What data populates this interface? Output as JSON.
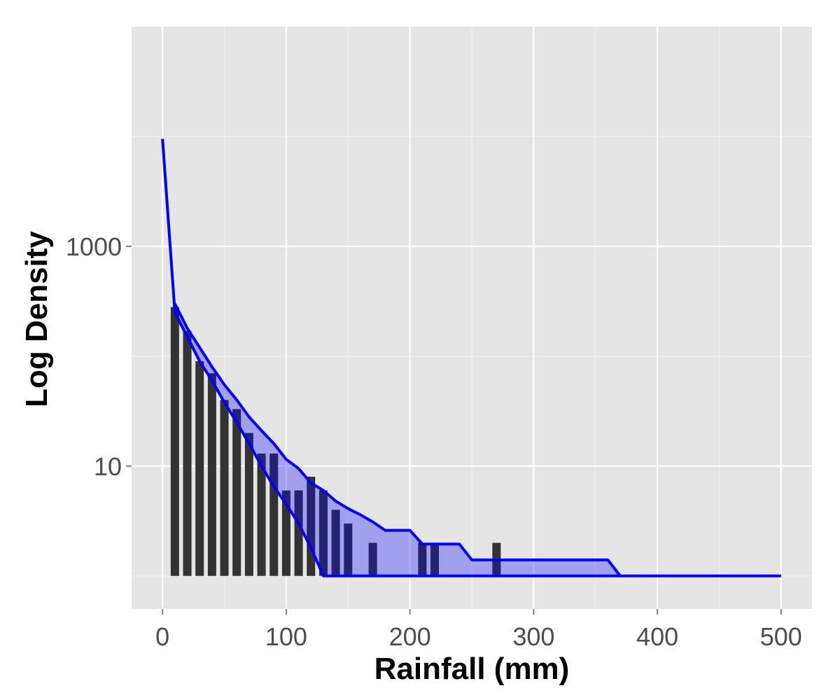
{
  "chart_data": {
    "type": "bar",
    "title": "",
    "xlabel": "Rainfall (mm)",
    "ylabel": "Log Density",
    "y_scale": "log10",
    "xlim": [
      -25,
      525
    ],
    "ylim": [
      0.5,
      100000
    ],
    "grid": true,
    "legend": "none",
    "x_ticks": [
      0,
      100,
      200,
      300,
      400,
      500
    ],
    "x_tick_labels": [
      "0",
      "100",
      "200",
      "300",
      "400",
      "500"
    ],
    "y_ticks": [
      10,
      1000
    ],
    "y_tick_labels": [
      "10",
      "1000"
    ],
    "bar_baseline": 1,
    "bar_color": "#333333",
    "band_fill": "#0000ff",
    "band_fill_opacity": 0.3,
    "line_color": "#0000ff",
    "bars": {
      "x": [
        10,
        20,
        30,
        40,
        50,
        60,
        70,
        80,
        90,
        100,
        110,
        120,
        130,
        140,
        150,
        170,
        210,
        220,
        270
      ],
      "values": [
        280,
        170,
        90,
        70,
        40,
        33,
        20,
        13,
        13,
        6,
        6,
        8,
        6,
        4,
        3,
        2,
        2,
        2,
        2
      ]
    },
    "series": [
      {
        "role": "upper",
        "x": [
          10,
          20,
          30,
          40,
          50,
          60,
          70,
          80,
          90,
          100,
          110,
          120,
          130,
          140,
          150,
          160,
          170,
          180,
          190,
          200,
          210,
          220,
          230,
          240,
          250,
          260,
          270,
          280,
          290,
          300,
          310,
          320,
          330,
          340,
          350,
          360,
          370
        ],
        "values": [
          300,
          180,
          120,
          80,
          55,
          40,
          28,
          21,
          16,
          11.5,
          9.5,
          7,
          6,
          4.8,
          4.1,
          3.6,
          3.1,
          2.6,
          2.6,
          2.6,
          1.95,
          1.95,
          1.95,
          1.95,
          1.4,
          1.4,
          1.4,
          1.4,
          1.4,
          1.4,
          1.4,
          1.4,
          1.4,
          1.4,
          1.4,
          1.4,
          1
        ]
      },
      {
        "role": "lower",
        "x": [
          0,
          10,
          20,
          30,
          40,
          50,
          60,
          70,
          80,
          90,
          100,
          110,
          120,
          130,
          140,
          150,
          160,
          170,
          180,
          190,
          200,
          210,
          220,
          230,
          240,
          250,
          260,
          270,
          280,
          290,
          300,
          310,
          320,
          330,
          340,
          350,
          360,
          370,
          380,
          390,
          400,
          410,
          420,
          430,
          440,
          450,
          460,
          470,
          480,
          490,
          500
        ],
        "values": [
          9500,
          250,
          150,
          90,
          60,
          38,
          25,
          16,
          10,
          6.5,
          4.5,
          3,
          1.8,
          1,
          1,
          1,
          1,
          1,
          1,
          1,
          1,
          1,
          1,
          1,
          1,
          1,
          1,
          1,
          1,
          1,
          1,
          1,
          1,
          1,
          1,
          1,
          1,
          1,
          1,
          1,
          1,
          1,
          1,
          1,
          1,
          1,
          1,
          1,
          1,
          1,
          1
        ]
      }
    ]
  }
}
